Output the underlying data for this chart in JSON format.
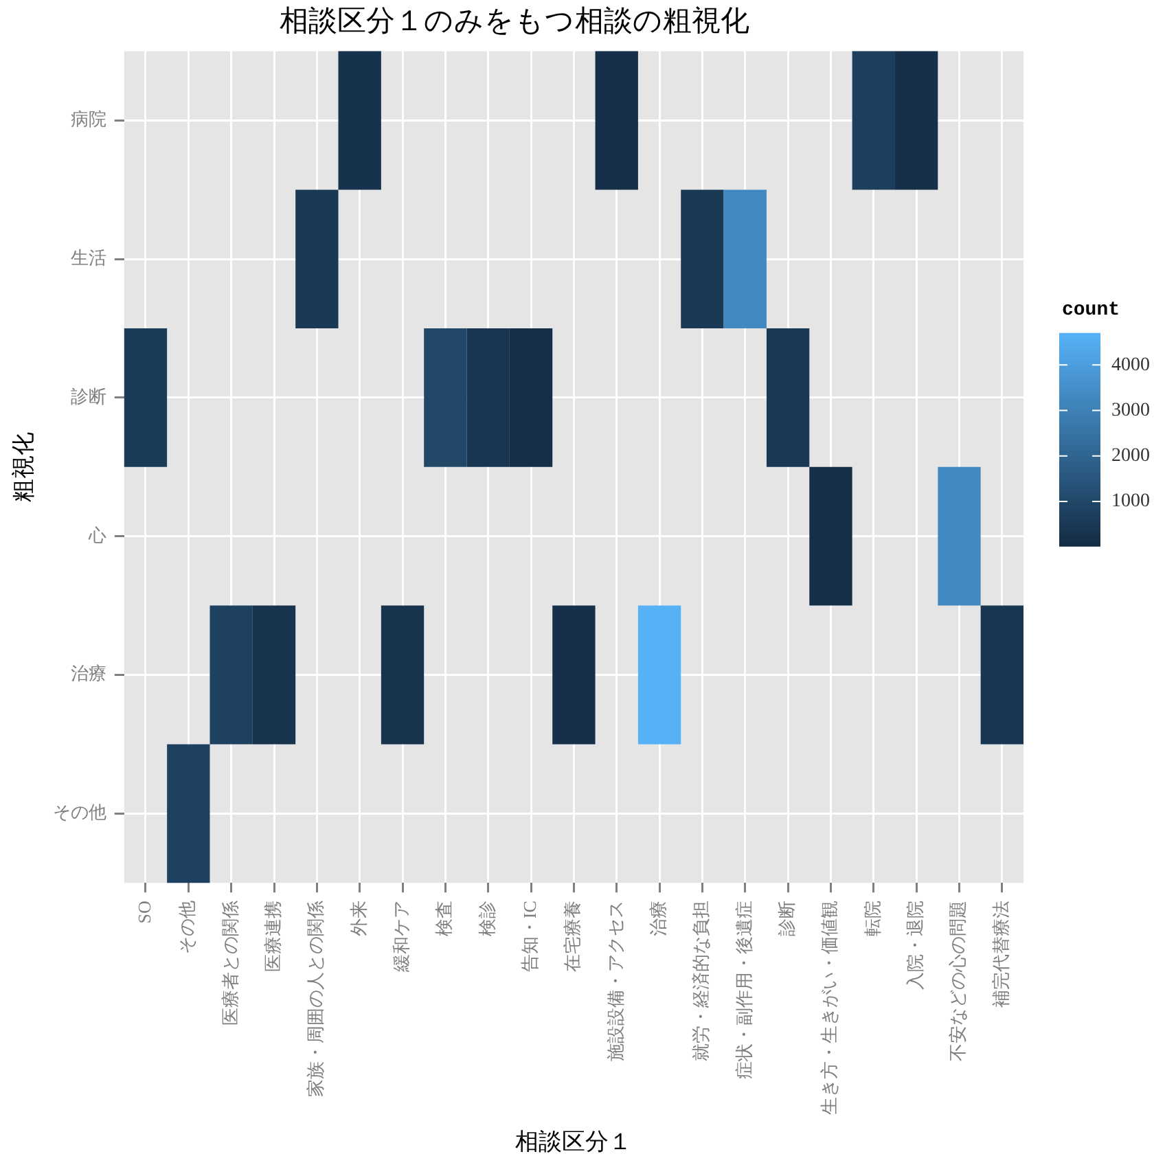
{
  "chart_data": {
    "type": "heatmap",
    "title": "相談区分１のみをもつ相談の粗視化",
    "xlabel": "相談区分１",
    "ylabel": "粗視化",
    "clabel": "count",
    "categories": [
      "SO",
      "その他",
      "医療者との関係",
      "医療連携",
      "家族・周囲の人との関係",
      "外来",
      "緩和ケア",
      "検査",
      "検診",
      "告知・IC",
      "在宅療養",
      "施設設備・アクセス",
      "治療",
      "就労・経済的な負担",
      "症状・副作用・後遺症",
      "診断",
      "生き方・生きがい・価値観",
      "転院",
      "入院・退院",
      "不安などの心の問題",
      "補完代替療法"
    ],
    "y_categories": [
      "病院",
      "生活",
      "診断",
      "心",
      "治療",
      "その他"
    ],
    "cells": [
      [
        null,
        null,
        null,
        null,
        null,
        250,
        null,
        null,
        null,
        null,
        null,
        150,
        null,
        null,
        null,
        null,
        null,
        700,
        200,
        null,
        null
      ],
      [
        null,
        null,
        null,
        null,
        500,
        null,
        null,
        null,
        null,
        null,
        null,
        null,
        null,
        500,
        3300,
        null,
        null,
        null,
        null,
        null,
        null
      ],
      [
        600,
        null,
        null,
        null,
        null,
        null,
        null,
        1000,
        400,
        150,
        null,
        null,
        null,
        null,
        null,
        500,
        null,
        null,
        null,
        null,
        null
      ],
      [
        null,
        null,
        null,
        null,
        null,
        null,
        null,
        null,
        null,
        null,
        null,
        null,
        null,
        null,
        null,
        null,
        150,
        null,
        null,
        3300,
        null
      ],
      [
        null,
        null,
        800,
        300,
        null,
        null,
        300,
        null,
        null,
        null,
        200,
        null,
        4700,
        null,
        null,
        null,
        null,
        null,
        null,
        null,
        400
      ],
      [
        null,
        800,
        null,
        null,
        null,
        null,
        null,
        null,
        null,
        null,
        null,
        null,
        null,
        null,
        null,
        null,
        null,
        null,
        null,
        null,
        null
      ]
    ],
    "clim": [
      20,
      4700
    ],
    "cticks": [
      1000,
      2000,
      3000,
      4000
    ],
    "grid": true
  }
}
